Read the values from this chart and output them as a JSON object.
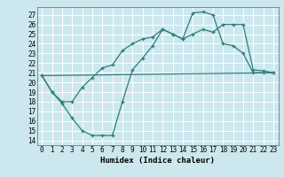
{
  "xlabel": "Humidex (Indice chaleur)",
  "bg_color": "#cce8ee",
  "grid_color": "#ffffff",
  "line_color": "#2d7d78",
  "xlim": [
    -0.5,
    23.5
  ],
  "ylim": [
    13.5,
    27.8
  ],
  "yticks": [
    14,
    15,
    16,
    17,
    18,
    19,
    20,
    21,
    22,
    23,
    24,
    25,
    26,
    27
  ],
  "xticks": [
    0,
    1,
    2,
    3,
    4,
    5,
    6,
    7,
    8,
    9,
    10,
    11,
    12,
    13,
    14,
    15,
    16,
    17,
    18,
    19,
    20,
    21,
    22,
    23
  ],
  "line1_x": [
    0,
    1,
    2,
    3,
    4,
    5,
    6,
    7,
    8,
    9,
    10,
    11,
    12,
    13,
    14,
    15,
    16,
    17,
    18,
    19,
    20,
    21,
    22,
    23
  ],
  "line1_y": [
    20.7,
    19.0,
    17.8,
    16.3,
    15.0,
    14.5,
    14.5,
    14.5,
    18.0,
    21.3,
    22.5,
    23.8,
    25.5,
    25.0,
    24.5,
    25.0,
    25.5,
    25.2,
    26.0,
    26.0,
    26.0,
    21.3,
    21.2,
    21.0
  ],
  "line2_x": [
    0,
    1,
    2,
    3,
    4,
    5,
    6,
    7,
    8,
    9,
    10,
    11,
    12,
    13,
    14,
    15,
    16,
    17,
    18,
    19,
    20,
    21,
    22,
    23
  ],
  "line2_y": [
    20.7,
    19.0,
    18.0,
    18.0,
    19.5,
    20.5,
    21.5,
    21.8,
    23.3,
    24.0,
    24.5,
    24.7,
    25.5,
    25.0,
    24.5,
    27.2,
    27.3,
    27.0,
    24.0,
    23.8,
    23.0,
    21.0,
    21.0,
    21.0
  ],
  "line3_x": [
    0,
    23
  ],
  "line3_y": [
    20.7,
    21.0
  ]
}
